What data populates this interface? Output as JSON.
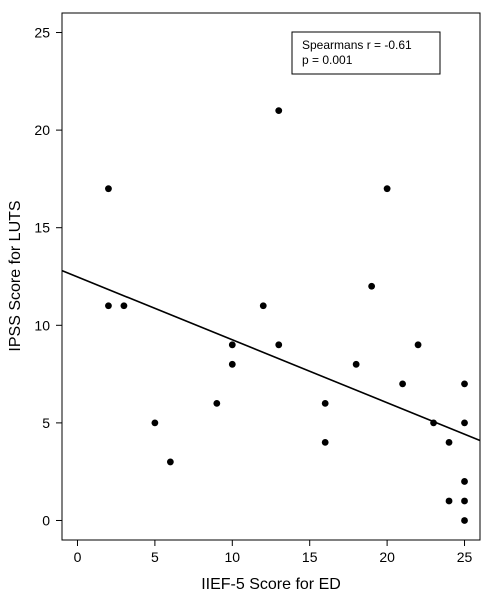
{
  "chart_data": {
    "type": "scatter",
    "title": "",
    "xlabel": "IIEF-5 Score for ED",
    "ylabel": "IPSS Score for LUTS",
    "xlim": [
      -1,
      26
    ],
    "ylim": [
      -1,
      26
    ],
    "xticks": [
      0,
      5,
      10,
      15,
      20,
      25
    ],
    "yticks": [
      0,
      5,
      10,
      15,
      20,
      25
    ],
    "grid": false,
    "points": [
      {
        "x": 2,
        "y": 17
      },
      {
        "x": 2,
        "y": 11
      },
      {
        "x": 3,
        "y": 11
      },
      {
        "x": 5,
        "y": 5
      },
      {
        "x": 6,
        "y": 3
      },
      {
        "x": 9,
        "y": 6
      },
      {
        "x": 10,
        "y": 9
      },
      {
        "x": 10,
        "y": 8
      },
      {
        "x": 12,
        "y": 11
      },
      {
        "x": 13,
        "y": 21
      },
      {
        "x": 13,
        "y": 9
      },
      {
        "x": 16,
        "y": 6
      },
      {
        "x": 16,
        "y": 4
      },
      {
        "x": 18,
        "y": 8
      },
      {
        "x": 19,
        "y": 12
      },
      {
        "x": 20,
        "y": 17
      },
      {
        "x": 21,
        "y": 7
      },
      {
        "x": 22,
        "y": 9
      },
      {
        "x": 23,
        "y": 5
      },
      {
        "x": 24,
        "y": 4
      },
      {
        "x": 24,
        "y": 1
      },
      {
        "x": 25,
        "y": 7
      },
      {
        "x": 25,
        "y": 5
      },
      {
        "x": 25,
        "y": 2
      },
      {
        "x": 25,
        "y": 1
      },
      {
        "x": 25,
        "y": 0
      }
    ],
    "regression_line": {
      "x": [
        -1,
        26
      ],
      "y": [
        12.8,
        4.1
      ]
    },
    "annotation": {
      "line1": "Spearmans r = -0.61",
      "line2": "p = 0.001",
      "placement": "top-right"
    },
    "colors": {
      "points": "#000000",
      "line": "#000000",
      "axes": "#000000"
    }
  }
}
